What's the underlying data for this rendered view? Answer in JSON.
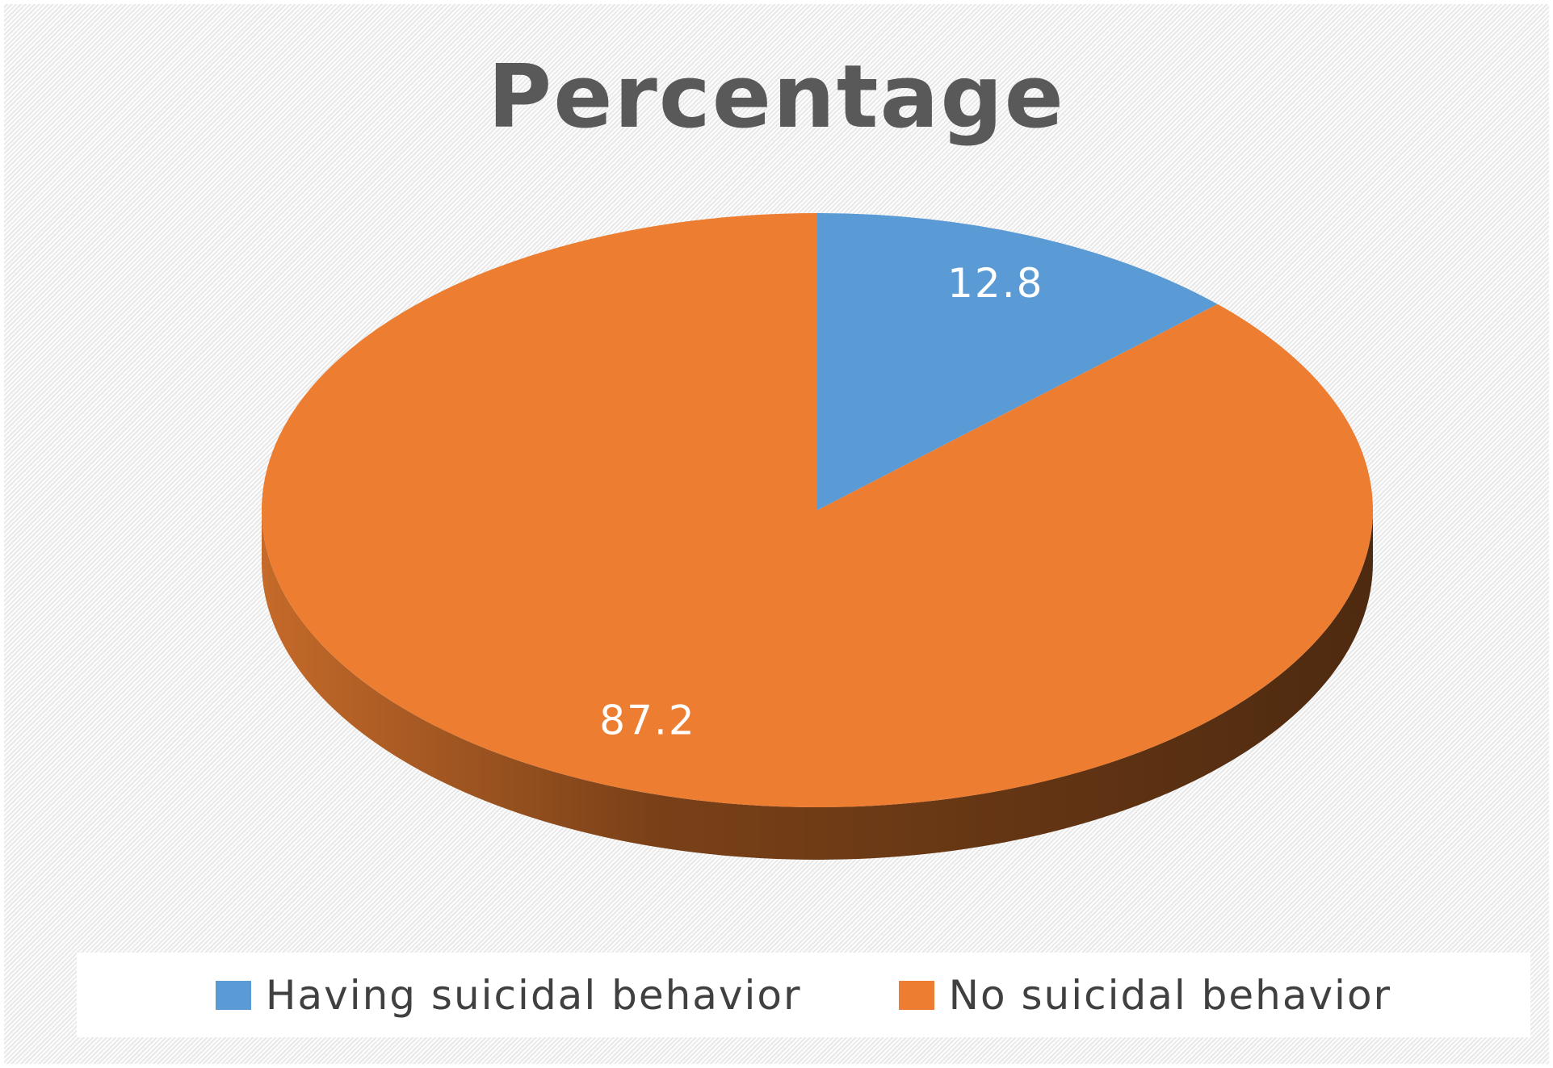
{
  "chart_data": {
    "type": "pie",
    "title": "Percentage",
    "categories": [
      "Having suicidal behavior",
      "No suicidal behavior"
    ],
    "values": [
      12.8,
      87.2
    ],
    "data_labels": [
      "12.8",
      "87.2"
    ],
    "colors": [
      "#5b9bd5",
      "#ed7d31"
    ],
    "side_colors": [
      "#3f6f99",
      "#8a4a1e"
    ],
    "style": "3d",
    "legend_position": "bottom"
  }
}
